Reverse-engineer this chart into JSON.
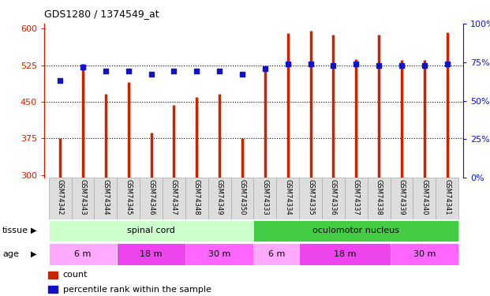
{
  "title": "GDS1280 / 1374549_at",
  "samples": [
    "GSM74342",
    "GSM74343",
    "GSM74344",
    "GSM74345",
    "GSM74346",
    "GSM74347",
    "GSM74348",
    "GSM74349",
    "GSM74350",
    "GSM74333",
    "GSM74334",
    "GSM74335",
    "GSM74336",
    "GSM74337",
    "GSM74338",
    "GSM74339",
    "GSM74340",
    "GSM74341"
  ],
  "counts": [
    375,
    527,
    467,
    490,
    387,
    443,
    460,
    467,
    375,
    518,
    591,
    596,
    588,
    537,
    588,
    535,
    535,
    593
  ],
  "percentiles": [
    63,
    72,
    69,
    69,
    67,
    69,
    69,
    69,
    67,
    71,
    74,
    74,
    73,
    74,
    73,
    73,
    73,
    74
  ],
  "bar_color": "#cc2200",
  "dot_color": "#1111cc",
  "ylim_left": [
    295,
    610
  ],
  "ylim_right": [
    0,
    100
  ],
  "yticks_left": [
    300,
    375,
    450,
    525,
    600
  ],
  "yticks_right": [
    0,
    25,
    50,
    75,
    100
  ],
  "grid_values": [
    375,
    450,
    525
  ],
  "tissue_groups": [
    {
      "label": "spinal cord",
      "start": 0,
      "end": 9,
      "color": "#ccffcc"
    },
    {
      "label": "oculomotor nucleus",
      "start": 9,
      "end": 18,
      "color": "#44cc44"
    }
  ],
  "age_groups": [
    {
      "label": "6 m",
      "start": 0,
      "end": 3,
      "color": "#ffaaff"
    },
    {
      "label": "18 m",
      "start": 3,
      "end": 6,
      "color": "#ee44ee"
    },
    {
      "label": "30 m",
      "start": 6,
      "end": 9,
      "color": "#ff66ff"
    },
    {
      "label": "6 m",
      "start": 9,
      "end": 11,
      "color": "#ffaaff"
    },
    {
      "label": "18 m",
      "start": 11,
      "end": 15,
      "color": "#ee44ee"
    },
    {
      "label": "30 m",
      "start": 15,
      "end": 18,
      "color": "#ff66ff"
    }
  ],
  "tick_color_left": "#cc2200",
  "tick_color_right": "#1111cc",
  "legend_items": [
    {
      "label": "count",
      "color": "#cc2200"
    },
    {
      "label": "percentile rank within the sample",
      "color": "#1111cc"
    }
  ],
  "bar_linewidth": 2.5,
  "dot_size": 25
}
